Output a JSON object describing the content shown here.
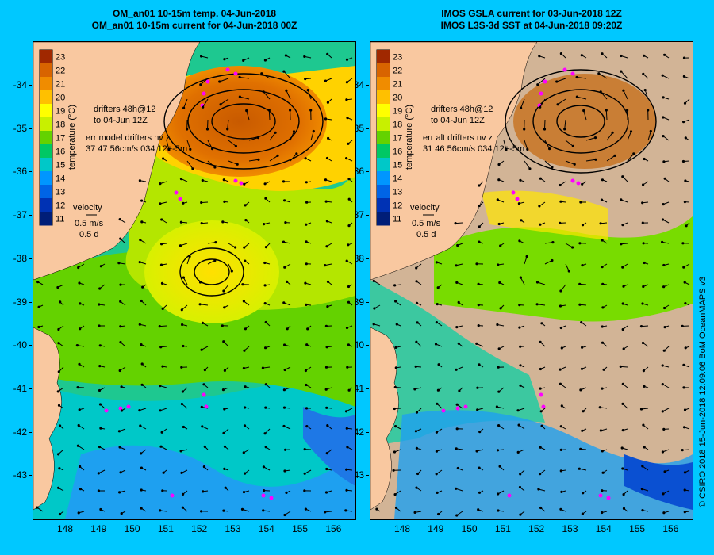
{
  "left_panel": {
    "title_line1": "OM_an01 10-15m temp. 04-Jun-2018",
    "title_line2": "OM_an01 10-15m current for 04-Jun-2018 00Z",
    "drifters_line1": "drifters 48h@12",
    "drifters_line2": "to 04-Jun 12Z",
    "err_line1": "err model drifters nv z",
    "err_line2": "37 47 56cm/s 034 12+-5m",
    "velocity_label": "velocity",
    "velocity_speed": "0.5 m/s",
    "velocity_time": "0.5 d"
  },
  "right_panel": {
    "title_line1": "IMOS GSLA current for 03-Jun-2018 12Z",
    "title_line2": "IMOS L3S-3d SST at 04-Jun-2018 09:20Z",
    "drifters_line1": "drifters 48h@12",
    "drifters_line2": "to 04-Jun 12Z",
    "err_line1": "err alt drifters nv z",
    "err_line2": "31 46 56cm/s 034 12+-5m",
    "velocity_label": "velocity",
    "velocity_speed": "0.5 m/s",
    "velocity_time": "0.5 d"
  },
  "colorbar": {
    "label": "temperature (°C)",
    "ticks": [
      "23",
      "22",
      "21",
      "20",
      "19",
      "18",
      "17",
      "16",
      "15",
      "14",
      "13",
      "12",
      "11"
    ],
    "colors": [
      "#a02800",
      "#d86400",
      "#f08c00",
      "#ffc000",
      "#ffff00",
      "#c8f000",
      "#64d200",
      "#00c864",
      "#00c8c8",
      "#0096ff",
      "#0064e6",
      "#0032b4",
      "#001e78"
    ]
  },
  "y_axis": [
    "-34",
    "-35",
    "-36",
    "-37",
    "-38",
    "-39",
    "-40",
    "-41",
    "-42",
    "-43"
  ],
  "x_axis": [
    "148",
    "149",
    "150",
    "151",
    "152",
    "153",
    "154",
    "155",
    "156"
  ],
  "credit": "© CSIRO 2018  15-Jun-2018 12:09:06 BoM OceanMAPS v3"
}
